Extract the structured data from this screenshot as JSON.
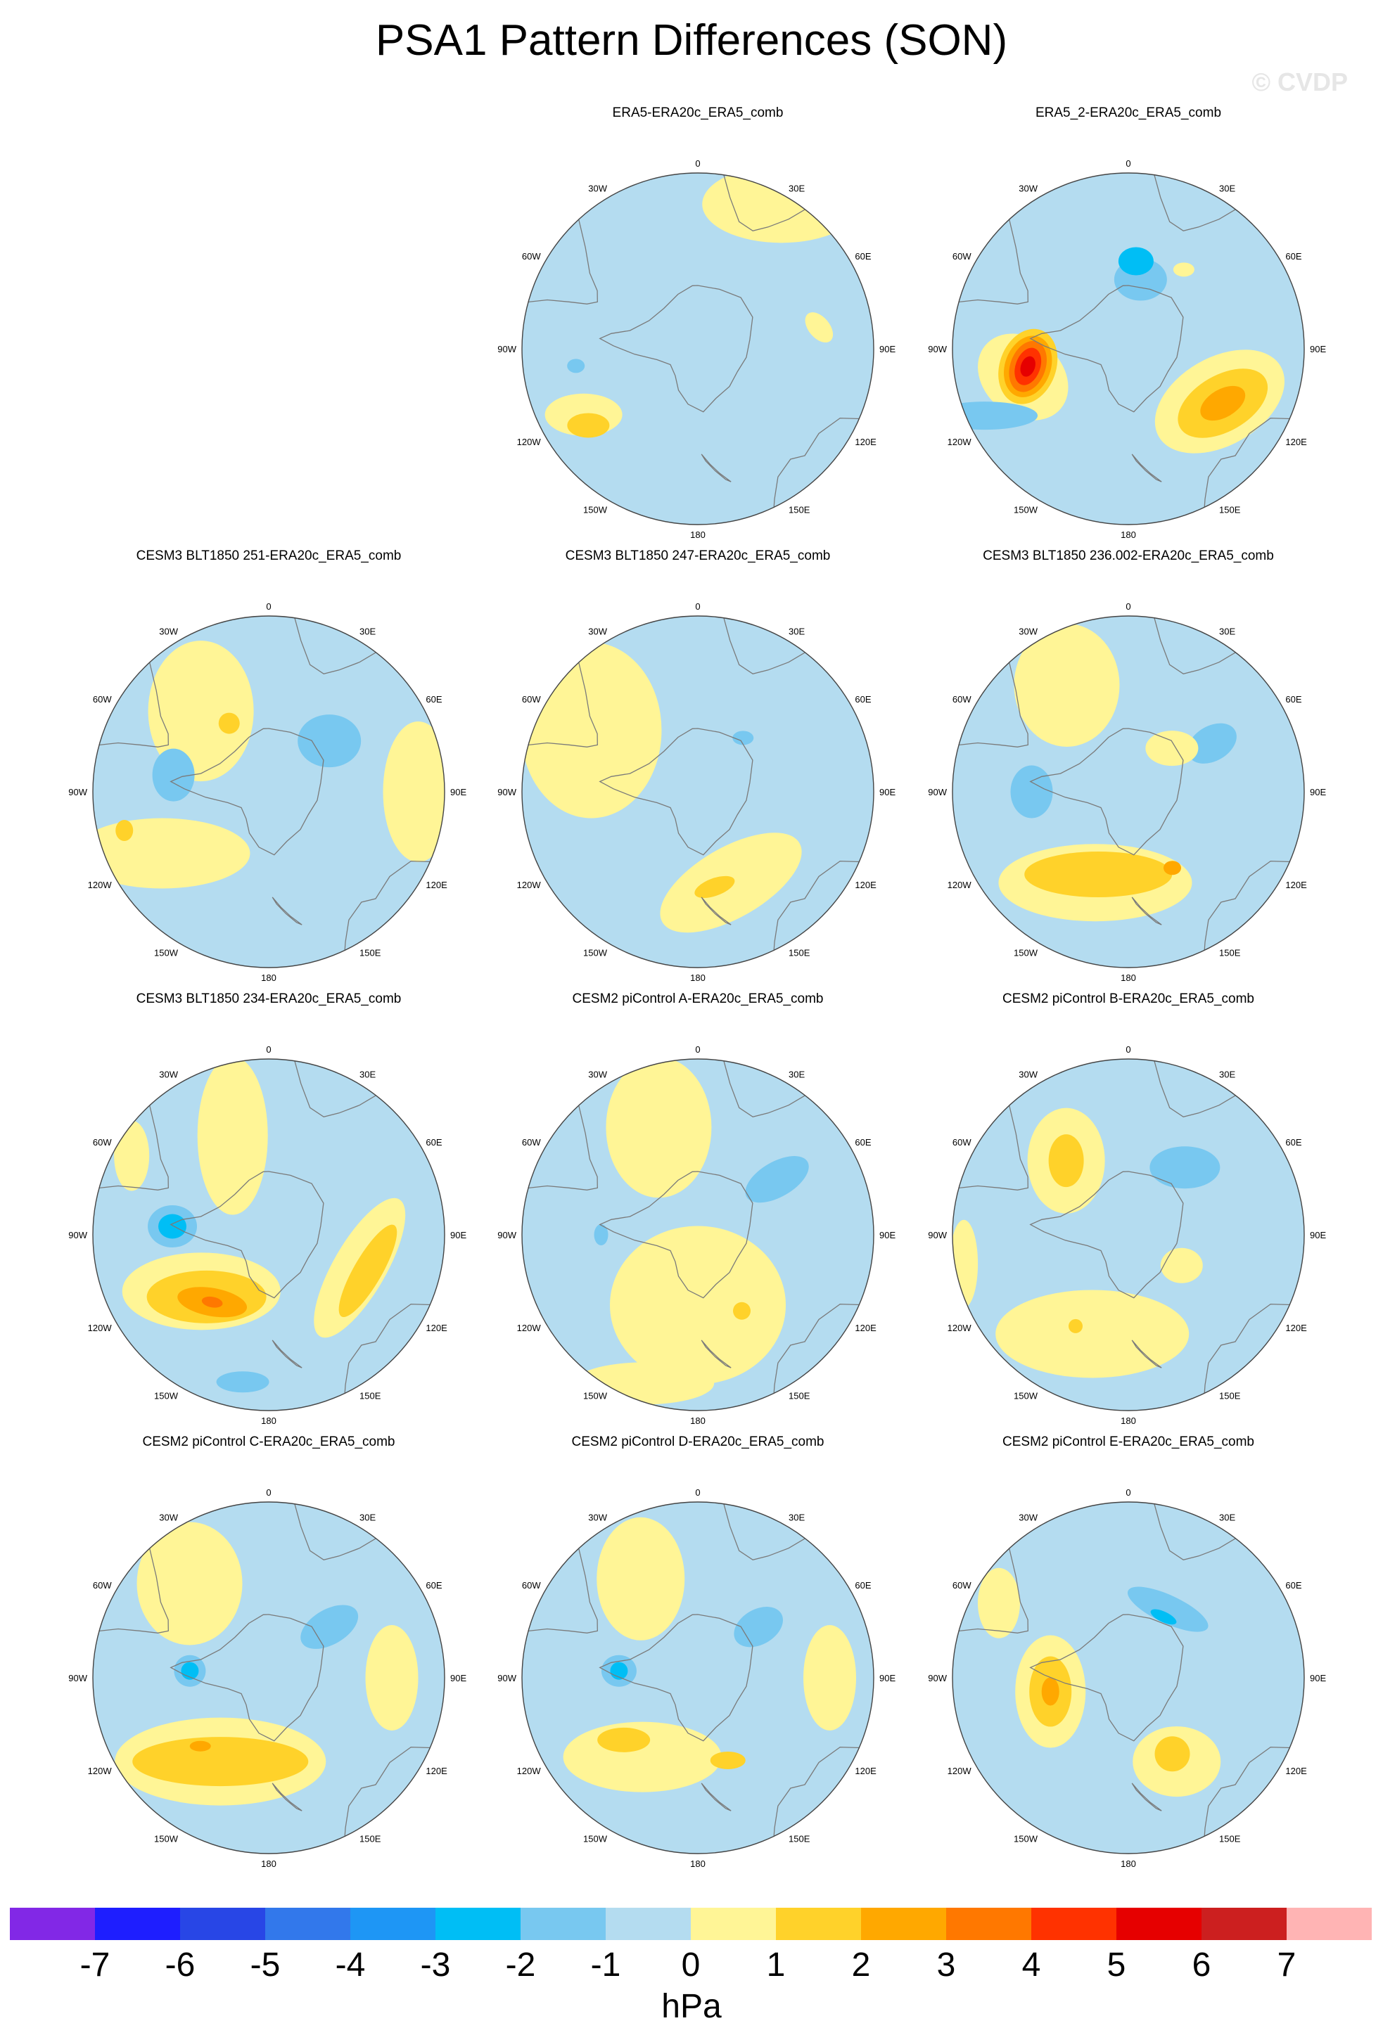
{
  "title": "PSA1 Pattern Differences (SON)",
  "watermark": "© CVDP",
  "map_labels": {
    "lon": [
      "0",
      "30E",
      "60E",
      "90E",
      "120E",
      "150E",
      "180",
      "150W",
      "120W",
      "90W",
      "60W",
      "30W"
    ]
  },
  "colors": {
    "-1_0": "#b4dcf0",
    "0_1": "#fff596",
    "1_2": "#ffd22a",
    "2_3": "#ffa800",
    "3_4": "#ff7800",
    "4_5": "#ff3200",
    "5_6": "#e60000",
    "6_7": "#cc1f1f",
    "gt7": "#ffb4b4",
    "-2_-1": "#78c8f0",
    "-3_-2": "#00bef5",
    "-4_-3": "#1e96f5",
    "-5_-4": "#3278eb",
    "-6_-5": "#2846e6",
    "-7_-6": "#1e1eff",
    "lt-7": "#8228e6",
    "coast": "#7a7a7a",
    "outline": "#444444"
  },
  "panels": [
    {
      "title": "ERA5-ERA20c_ERA5_comb",
      "features": [
        {
          "lon": 240,
          "r": 0.75,
          "rx": 0.22,
          "ry": 0.12,
          "rot": 0,
          "level": 1
        },
        {
          "lon": 235,
          "r": 0.76,
          "rx": 0.12,
          "ry": 0.07,
          "rot": 0,
          "level": 2
        },
        {
          "lon": 262,
          "r": 0.7,
          "rx": 0.16,
          "ry": 0.12,
          "rot": 20,
          "level": -1
        },
        {
          "lon": 262,
          "r": 0.7,
          "rx": 0.05,
          "ry": 0.04,
          "rot": 0,
          "level": -2
        },
        {
          "lon": 80,
          "r": 0.7,
          "rx": 0.1,
          "ry": 0.06,
          "rot": 50,
          "level": 1
        },
        {
          "lon": 30,
          "r": 0.95,
          "rx": 0.45,
          "ry": 0.22,
          "rot": 0,
          "level": 1
        },
        {
          "lon": 225,
          "r": 0.85,
          "rx": 0.12,
          "ry": 0.04,
          "rot": 0,
          "level": -1
        }
      ]
    },
    {
      "title": "ERA5_2-ERA20c_ERA5_comb",
      "features": [
        {
          "lon": 270,
          "r": 0.65,
          "rx": 0.42,
          "ry": 0.32,
          "rot": 90,
          "level": -1
        },
        {
          "lon": 255,
          "r": 0.62,
          "rx": 0.28,
          "ry": 0.22,
          "rot": 40,
          "level": 1
        },
        {
          "lon": 260,
          "r": 0.58,
          "rx": 0.16,
          "ry": 0.22,
          "rot": 20,
          "level": 2
        },
        {
          "lon": 260,
          "r": 0.58,
          "rx": 0.13,
          "ry": 0.18,
          "rot": 20,
          "level": 3
        },
        {
          "lon": 260,
          "r": 0.58,
          "rx": 0.1,
          "ry": 0.15,
          "rot": 20,
          "level": 4
        },
        {
          "lon": 260,
          "r": 0.58,
          "rx": 0.07,
          "ry": 0.11,
          "rot": 20,
          "level": 5
        },
        {
          "lon": 260,
          "r": 0.58,
          "rx": 0.04,
          "ry": 0.06,
          "rot": 20,
          "level": 6
        },
        {
          "lon": 245,
          "r": 0.9,
          "rx": 0.3,
          "ry": 0.08,
          "rot": 0,
          "level": -2
        },
        {
          "lon": 10,
          "r": 0.4,
          "rx": 0.15,
          "ry": 0.12,
          "rot": 0,
          "level": -2
        },
        {
          "lon": 5,
          "r": 0.5,
          "rx": 0.1,
          "ry": 0.08,
          "rot": 0,
          "level": -3
        },
        {
          "lon": 120,
          "r": 0.6,
          "rx": 0.25,
          "ry": 0.4,
          "rot": 60,
          "level": 1
        },
        {
          "lon": 120,
          "r": 0.62,
          "rx": 0.16,
          "ry": 0.28,
          "rot": 60,
          "level": 2
        },
        {
          "lon": 120,
          "r": 0.62,
          "rx": 0.08,
          "ry": 0.14,
          "rot": 60,
          "level": 3
        },
        {
          "lon": 35,
          "r": 0.55,
          "rx": 0.06,
          "ry": 0.04,
          "rot": 0,
          "level": 1
        }
      ]
    },
    {
      "title": "CESM3 BLT1850 251-ERA20c_ERA5_comb",
      "features": [
        {
          "lon": 320,
          "r": 0.6,
          "rx": 0.3,
          "ry": 0.4,
          "rot": 0,
          "level": 1
        },
        {
          "lon": 330,
          "r": 0.45,
          "rx": 0.06,
          "ry": 0.06,
          "rot": 0,
          "level": 2
        },
        {
          "lon": 280,
          "r": 0.55,
          "rx": 0.12,
          "ry": 0.15,
          "rot": 0,
          "level": -2
        },
        {
          "lon": 240,
          "r": 0.7,
          "rx": 0.5,
          "ry": 0.2,
          "rot": 0,
          "level": 1
        },
        {
          "lon": 255,
          "r": 0.85,
          "rx": 0.05,
          "ry": 0.06,
          "rot": 0,
          "level": 2
        },
        {
          "lon": 50,
          "r": 0.45,
          "rx": 0.18,
          "ry": 0.15,
          "rot": 0,
          "level": -2
        },
        {
          "lon": 90,
          "r": 0.85,
          "rx": 0.2,
          "ry": 0.4,
          "rot": 0,
          "level": 1
        }
      ]
    },
    {
      "title": "CESM3 BLT1850 247-ERA20c_ERA5_comb",
      "features": [
        {
          "lon": 300,
          "r": 0.7,
          "rx": 0.4,
          "ry": 0.5,
          "rot": 0,
          "level": 1
        },
        {
          "lon": 160,
          "r": 0.55,
          "rx": 0.45,
          "ry": 0.2,
          "rot": -30,
          "level": 1
        },
        {
          "lon": 170,
          "r": 0.55,
          "rx": 0.12,
          "ry": 0.05,
          "rot": -20,
          "level": 2
        },
        {
          "lon": 40,
          "r": 0.4,
          "rx": 0.06,
          "ry": 0.04,
          "rot": 0,
          "level": -2
        }
      ]
    },
    {
      "title": "CESM3 BLT1850 236.002-ERA20c_ERA5_comb",
      "features": [
        {
          "lon": 200,
          "r": 0.55,
          "rx": 0.55,
          "ry": 0.22,
          "rot": 0,
          "level": 1
        },
        {
          "lon": 200,
          "r": 0.5,
          "rx": 0.42,
          "ry": 0.13,
          "rot": 0,
          "level": 2
        },
        {
          "lon": 150,
          "r": 0.5,
          "rx": 0.05,
          "ry": 0.04,
          "rot": 0,
          "level": 3
        },
        {
          "lon": 330,
          "r": 0.7,
          "rx": 0.3,
          "ry": 0.35,
          "rot": 0,
          "level": 1
        },
        {
          "lon": 270,
          "r": 0.55,
          "rx": 0.12,
          "ry": 0.15,
          "rot": 0,
          "level": -2
        },
        {
          "lon": 60,
          "r": 0.55,
          "rx": 0.15,
          "ry": 0.1,
          "rot": -30,
          "level": -2
        },
        {
          "lon": 45,
          "r": 0.35,
          "rx": 0.15,
          "ry": 0.1,
          "rot": 0,
          "level": 1
        }
      ]
    },
    {
      "title": "CESM3 BLT1850 234-ERA20c_ERA5_comb",
      "features": [
        {
          "lon": 340,
          "r": 0.6,
          "rx": 0.2,
          "ry": 0.45,
          "rot": 0,
          "level": 1
        },
        {
          "lon": 230,
          "r": 0.5,
          "rx": 0.45,
          "ry": 0.22,
          "rot": 0,
          "level": 1
        },
        {
          "lon": 225,
          "r": 0.5,
          "rx": 0.34,
          "ry": 0.15,
          "rot": 0,
          "level": 2
        },
        {
          "lon": 220,
          "r": 0.5,
          "rx": 0.2,
          "ry": 0.08,
          "rot": 10,
          "level": 3
        },
        {
          "lon": 220,
          "r": 0.5,
          "rx": 0.06,
          "ry": 0.03,
          "rot": 10,
          "level": 4
        },
        {
          "lon": 110,
          "r": 0.55,
          "rx": 0.15,
          "ry": 0.45,
          "rot": 30,
          "level": 1
        },
        {
          "lon": 110,
          "r": 0.6,
          "rx": 0.08,
          "ry": 0.3,
          "rot": 30,
          "level": 2
        },
        {
          "lon": 275,
          "r": 0.55,
          "rx": 0.14,
          "ry": 0.12,
          "rot": 0,
          "level": -2
        },
        {
          "lon": 275,
          "r": 0.55,
          "rx": 0.08,
          "ry": 0.07,
          "rot": 0,
          "level": -3
        },
        {
          "lon": 190,
          "r": 0.85,
          "rx": 0.15,
          "ry": 0.06,
          "rot": 0,
          "level": -2
        },
        {
          "lon": 300,
          "r": 0.9,
          "rx": 0.1,
          "ry": 0.2,
          "rot": 0,
          "level": 1
        }
      ]
    },
    {
      "title": "CESM2 piControl A-ERA20c_ERA5_comb",
      "features": [
        {
          "lon": 340,
          "r": 0.65,
          "rx": 0.3,
          "ry": 0.4,
          "rot": 0,
          "level": 1
        },
        {
          "lon": 180,
          "r": 0.4,
          "rx": 0.5,
          "ry": 0.45,
          "rot": 0,
          "level": 1
        },
        {
          "lon": 200,
          "r": 0.9,
          "rx": 0.4,
          "ry": 0.12,
          "rot": 0,
          "level": 1
        },
        {
          "lon": 150,
          "r": 0.5,
          "rx": 0.05,
          "ry": 0.05,
          "rot": 0,
          "level": 2
        },
        {
          "lon": 55,
          "r": 0.55,
          "rx": 0.2,
          "ry": 0.1,
          "rot": -30,
          "level": -2
        },
        {
          "lon": 270,
          "r": 0.55,
          "rx": 0.04,
          "ry": 0.06,
          "rot": 0,
          "level": -2
        }
      ]
    },
    {
      "title": "CESM2 piControl B-ERA20c_ERA5_comb",
      "features": [
        {
          "lon": 320,
          "r": 0.55,
          "rx": 0.22,
          "ry": 0.3,
          "rot": 0,
          "level": 1
        },
        {
          "lon": 320,
          "r": 0.55,
          "rx": 0.1,
          "ry": 0.15,
          "rot": 0,
          "level": 2
        },
        {
          "lon": 200,
          "r": 0.6,
          "rx": 0.55,
          "ry": 0.25,
          "rot": 0,
          "level": 1
        },
        {
          "lon": 210,
          "r": 0.6,
          "rx": 0.04,
          "ry": 0.04,
          "rot": 0,
          "level": 2
        },
        {
          "lon": 40,
          "r": 0.5,
          "rx": 0.2,
          "ry": 0.12,
          "rot": 0,
          "level": -2
        },
        {
          "lon": 120,
          "r": 0.35,
          "rx": 0.12,
          "ry": 0.1,
          "rot": 0,
          "level": 1
        },
        {
          "lon": 260,
          "r": 0.95,
          "rx": 0.08,
          "ry": 0.25,
          "rot": 0,
          "level": 1
        }
      ]
    },
    {
      "title": "CESM2 piControl C-ERA20c_ERA5_comb",
      "features": [
        {
          "lon": 320,
          "r": 0.7,
          "rx": 0.3,
          "ry": 0.35,
          "rot": 0,
          "level": 1
        },
        {
          "lon": 210,
          "r": 0.55,
          "rx": 0.6,
          "ry": 0.25,
          "rot": 0,
          "level": 1
        },
        {
          "lon": 210,
          "r": 0.55,
          "rx": 0.5,
          "ry": 0.14,
          "rot": 0,
          "level": 2
        },
        {
          "lon": 225,
          "r": 0.55,
          "rx": 0.06,
          "ry": 0.03,
          "rot": 0,
          "level": 3
        },
        {
          "lon": 275,
          "r": 0.45,
          "rx": 0.14,
          "ry": 0.14,
          "rot": 0,
          "level": -1
        },
        {
          "lon": 275,
          "r": 0.45,
          "rx": 0.09,
          "ry": 0.09,
          "rot": 0,
          "level": -2
        },
        {
          "lon": 275,
          "r": 0.45,
          "rx": 0.05,
          "ry": 0.05,
          "rot": 0,
          "level": -3
        },
        {
          "lon": 50,
          "r": 0.45,
          "rx": 0.18,
          "ry": 0.1,
          "rot": -30,
          "level": -2
        },
        {
          "lon": 90,
          "r": 0.7,
          "rx": 0.15,
          "ry": 0.3,
          "rot": 0,
          "level": 1
        }
      ]
    },
    {
      "title": "CESM2 piControl D-ERA20c_ERA5_comb",
      "features": [
        {
          "lon": 330,
          "r": 0.65,
          "rx": 0.25,
          "ry": 0.35,
          "rot": 0,
          "level": 1
        },
        {
          "lon": 215,
          "r": 0.55,
          "rx": 0.45,
          "ry": 0.2,
          "rot": 0,
          "level": 1
        },
        {
          "lon": 230,
          "r": 0.55,
          "rx": 0.15,
          "ry": 0.07,
          "rot": 0,
          "level": 2
        },
        {
          "lon": 160,
          "r": 0.5,
          "rx": 0.1,
          "ry": 0.05,
          "rot": 0,
          "level": 2
        },
        {
          "lon": 275,
          "r": 0.45,
          "rx": 0.15,
          "ry": 0.14,
          "rot": 0,
          "level": -1
        },
        {
          "lon": 275,
          "r": 0.45,
          "rx": 0.1,
          "ry": 0.09,
          "rot": 0,
          "level": -2
        },
        {
          "lon": 275,
          "r": 0.45,
          "rx": 0.05,
          "ry": 0.05,
          "rot": 0,
          "level": -3
        },
        {
          "lon": 50,
          "r": 0.45,
          "rx": 0.15,
          "ry": 0.1,
          "rot": -30,
          "level": -2
        },
        {
          "lon": 90,
          "r": 0.75,
          "rx": 0.15,
          "ry": 0.3,
          "rot": 0,
          "level": 1
        }
      ]
    },
    {
      "title": "CESM2 piControl E-ERA20c_ERA5_comb",
      "features": [
        {
          "lon": 20,
          "r": 0.35,
          "rx": 0.4,
          "ry": 0.15,
          "rot": 30,
          "level": -1
        },
        {
          "lon": 30,
          "r": 0.45,
          "rx": 0.25,
          "ry": 0.08,
          "rot": 25,
          "level": -2
        },
        {
          "lon": 30,
          "r": 0.4,
          "rx": 0.08,
          "ry": 0.03,
          "rot": 25,
          "level": -3
        },
        {
          "lon": 260,
          "r": 0.45,
          "rx": 0.2,
          "ry": 0.32,
          "rot": 0,
          "level": 1
        },
        {
          "lon": 260,
          "r": 0.45,
          "rx": 0.12,
          "ry": 0.2,
          "rot": 0,
          "level": 2
        },
        {
          "lon": 260,
          "r": 0.45,
          "rx": 0.05,
          "ry": 0.08,
          "rot": 0,
          "level": 3
        },
        {
          "lon": 150,
          "r": 0.55,
          "rx": 0.25,
          "ry": 0.2,
          "rot": 0,
          "level": 1
        },
        {
          "lon": 150,
          "r": 0.5,
          "rx": 0.1,
          "ry": 0.1,
          "rot": 0,
          "level": 2
        },
        {
          "lon": 300,
          "r": 0.85,
          "rx": 0.12,
          "ry": 0.2,
          "rot": 0,
          "level": 1
        }
      ]
    }
  ],
  "colorbar": {
    "ticks": [
      "-7",
      "-6",
      "-5",
      "-4",
      "-3",
      "-2",
      "-1",
      "0",
      "1",
      "2",
      "3",
      "4",
      "5",
      "6",
      "7"
    ],
    "units": "hPa",
    "levels": [
      -7,
      -6,
      -5,
      -4,
      -3,
      -2,
      -1,
      0,
      1,
      2,
      3,
      4,
      5,
      6,
      7
    ]
  }
}
